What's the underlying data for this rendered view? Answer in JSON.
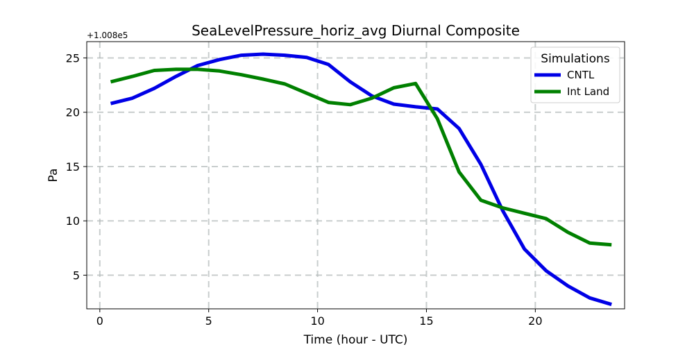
{
  "chart_data": {
    "type": "line",
    "title": "SeaLevelPressure_horiz_avg Diurnal Composite",
    "xlabel": "Time (hour - UTC)",
    "ylabel": "Pa",
    "y_offset_label": "+1.008e5",
    "xlim": [
      -0.6,
      24.1
    ],
    "ylim": [
      1.9,
      26.5
    ],
    "xticks": [
      0,
      5,
      10,
      15,
      20
    ],
    "yticks": [
      5,
      10,
      15,
      20,
      25
    ],
    "grid": true,
    "legend": {
      "title": "Simulations",
      "position": "top-right"
    },
    "x": [
      0.5,
      1.5,
      2.5,
      3.5,
      4.5,
      5.5,
      6.5,
      7.5,
      8.5,
      9.5,
      10.5,
      11.5,
      12.5,
      13.5,
      14.5,
      15.5,
      16.5,
      17.5,
      18.5,
      19.5,
      20.5,
      21.5,
      22.5,
      23.5
    ],
    "series": [
      {
        "name": "CNTL",
        "color": "#0000e6",
        "values": [
          20.8,
          21.3,
          22.2,
          23.3,
          24.3,
          24.85,
          25.25,
          25.35,
          25.25,
          25.05,
          24.4,
          22.8,
          21.5,
          20.75,
          20.5,
          20.3,
          18.5,
          15.2,
          10.95,
          7.4,
          5.4,
          4.0,
          2.9,
          2.3
        ]
      },
      {
        "name": "Int Land",
        "color": "#008000",
        "values": [
          22.8,
          23.3,
          23.85,
          23.95,
          23.95,
          23.8,
          23.45,
          23.05,
          22.6,
          21.75,
          20.9,
          20.7,
          21.3,
          22.25,
          22.65,
          19.4,
          14.5,
          11.9,
          11.2,
          10.7,
          10.2,
          8.95,
          7.95,
          7.8
        ]
      }
    ]
  }
}
